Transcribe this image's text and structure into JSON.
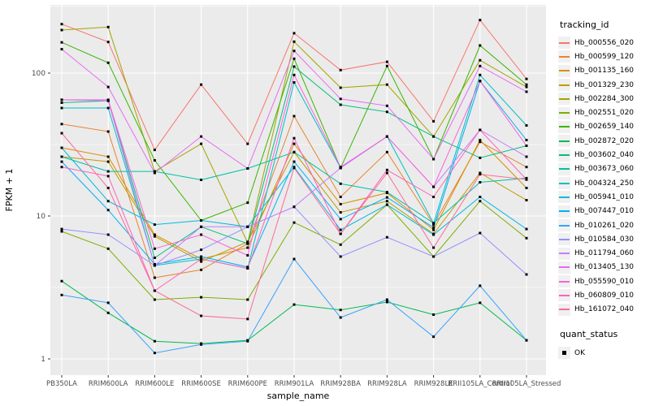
{
  "chart_data": {
    "type": "line",
    "title": "",
    "xlabel": "sample_name",
    "ylabel": "FPKM + 1",
    "y_scale": "log10",
    "ylim": [
      1,
      300
    ],
    "y_ticks": [
      "1",
      "10",
      "100"
    ],
    "grid": "white-on-grey",
    "legend_position": "right",
    "point_shape": "black-square",
    "categories": [
      "PB350LA",
      "RRIM600LA",
      "RRIM600LE",
      "RRIM600SE",
      "RRIM600PE",
      "RRIM901LA",
      "RRIM928BA",
      "RRIM928LA",
      "RRIM928LE",
      "RRII105LA_Control",
      "RRII105LA_Stressed"
    ],
    "series": [
      {
        "name": "Hb_000556_020",
        "color": "#F8766D",
        "values": [
          220,
          165,
          29,
          83,
          32,
          190,
          105,
          120,
          46,
          235,
          91
        ]
      },
      {
        "name": "Hb_000599_120",
        "color": "#EA8331",
        "values": [
          44,
          39,
          3.7,
          4.2,
          6.4,
          50,
          13.6,
          28,
          8.7,
          33,
          22
        ]
      },
      {
        "name": "Hb_001135_160",
        "color": "#D89000",
        "values": [
          30,
          26,
          7.4,
          5.0,
          6.0,
          32,
          12.1,
          14.5,
          8.0,
          34,
          15.7
        ]
      },
      {
        "name": "Hb_001329_230",
        "color": "#C09B00",
        "values": [
          26,
          24,
          7.2,
          4.8,
          6.6,
          28,
          10.6,
          12.7,
          7.5,
          20,
          12.9
        ]
      },
      {
        "name": "Hb_002284_300",
        "color": "#A3A500",
        "values": [
          200,
          210,
          20.5,
          32,
          6.5,
          166,
          79,
          83,
          36,
          123,
          80
        ]
      },
      {
        "name": "Hb_002551_020",
        "color": "#7CAE00",
        "values": [
          7.8,
          5.9,
          2.6,
          2.7,
          2.6,
          9,
          6.3,
          12,
          5.2,
          12.7,
          7.0
        ]
      },
      {
        "name": "Hb_002659_140",
        "color": "#39B600",
        "values": [
          164,
          118,
          24.5,
          9.3,
          12.4,
          126,
          21.7,
          112,
          25,
          156,
          83
        ]
      },
      {
        "name": "Hb_002872_020",
        "color": "#00BB4E",
        "values": [
          3.5,
          2.1,
          1.33,
          1.28,
          1.35,
          2.4,
          2.2,
          2.5,
          2.04,
          2.47,
          1.35
        ]
      },
      {
        "name": "Hb_003602_040",
        "color": "#00BF7D",
        "values": [
          62,
          64,
          5.1,
          8.4,
          6.4,
          111,
          60,
          53.5,
          36,
          25.5,
          31
        ]
      },
      {
        "name": "Hb_003673_060",
        "color": "#00C1A3",
        "values": [
          26,
          20.5,
          20.5,
          17.9,
          21.5,
          28,
          16.8,
          14.7,
          8.9,
          17.2,
          18.4
        ]
      },
      {
        "name": "Hb_004324_250",
        "color": "#00BFC4",
        "values": [
          57,
          57,
          4.5,
          5.0,
          4.3,
          86,
          21.7,
          36,
          8.9,
          97,
          43
        ]
      },
      {
        "name": "Hb_005941_010",
        "color": "#00BAE0",
        "values": [
          30,
          12.7,
          8.7,
          9.3,
          8.4,
          22,
          8.0,
          12.0,
          7.4,
          13.6,
          8.1
        ]
      },
      {
        "name": "Hb_007447_010",
        "color": "#00B0F6",
        "values": [
          24,
          11,
          4.6,
          5.2,
          4.4,
          24,
          9.5,
          13.5,
          8.3,
          88,
          34
        ]
      },
      {
        "name": "Hb_010261_020",
        "color": "#35A2FF",
        "values": [
          2.8,
          2.47,
          1.1,
          1.26,
          1.33,
          5.0,
          1.95,
          2.6,
          1.43,
          3.25,
          1.35
        ]
      },
      {
        "name": "Hb_010584_030",
        "color": "#9590FF",
        "values": [
          8.1,
          7.4,
          4.5,
          5.8,
          8.4,
          11.6,
          5.2,
          7.1,
          5.2,
          7.6,
          3.9
        ]
      },
      {
        "name": "Hb_011794_060",
        "color": "#C77CFF",
        "values": [
          65,
          64,
          4.5,
          8.4,
          8.4,
          11.6,
          21.7,
          36,
          16,
          40,
          26
        ]
      },
      {
        "name": "Hb_013405_130",
        "color": "#E76BF3",
        "values": [
          147,
          80,
          20,
          36,
          21.5,
          143,
          66,
          59,
          25,
          112,
          74
        ]
      },
      {
        "name": "Hb_055590_010",
        "color": "#FA62DB",
        "values": [
          65,
          65,
          5.9,
          7.4,
          5.3,
          97,
          22,
          36,
          16,
          88,
          31
        ]
      },
      {
        "name": "Hb_060809_010",
        "color": "#FF62BC",
        "values": [
          22,
          19,
          3.0,
          5.0,
          4.3,
          35,
          7.5,
          21,
          13.6,
          40,
          18
        ]
      },
      {
        "name": "Hb_161072_040",
        "color": "#FF6A98",
        "values": [
          38,
          15.7,
          3.0,
          2.0,
          1.9,
          21.7,
          7.5,
          20,
          6.0,
          19.6,
          18
        ]
      }
    ]
  },
  "legend": {
    "tracking_title": "tracking_id",
    "quant_title": "quant_status",
    "quant_items": [
      {
        "label": "OK",
        "symbol": "black-square"
      }
    ]
  },
  "panel": {
    "background": "#EBEBEB",
    "grid_color": "#FFFFFF",
    "tick_color": "#333333",
    "tick_label_color": "#4D4D4D",
    "axis_title_color": "#000000"
  }
}
